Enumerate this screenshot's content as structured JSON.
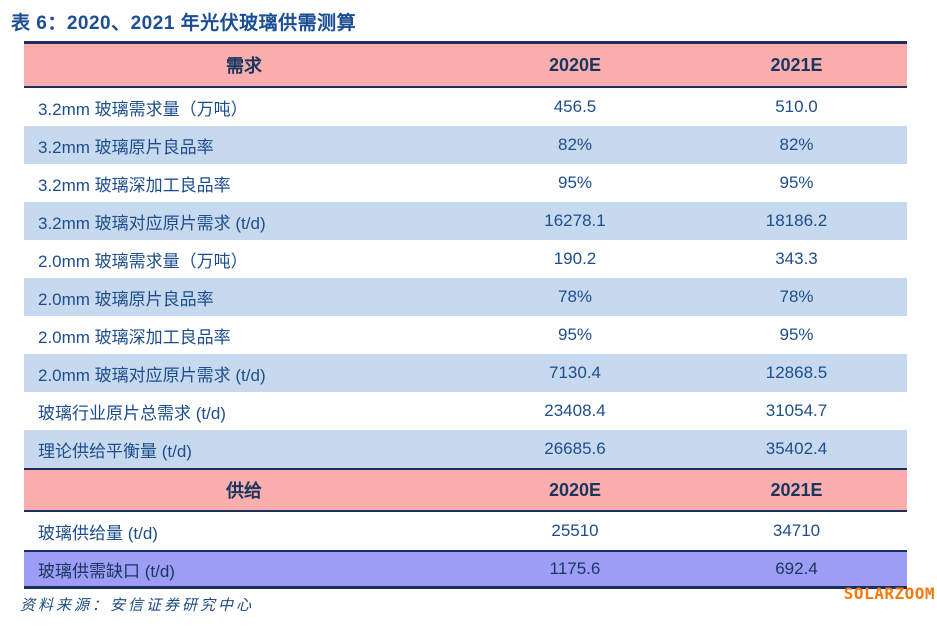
{
  "title": "表 6：2020、2021 年光伏玻璃供需测算",
  "source": "资料来源：安信证券研究中心",
  "watermark": "SOLARZOOM",
  "colors": {
    "title_blue": "#1B4E94",
    "header_pink": "#FCAEAE",
    "header_text_navy": "#17375E",
    "row_blue": "#C7D9EF",
    "gap_purple": "#9E9DF5",
    "border_navy": "#1B2F5E",
    "body_text_blue": "#1D4E8C",
    "watermark_orange": "#F8790B"
  },
  "table": {
    "demand_header": {
      "label": "需求",
      "col2020": "2020E",
      "col2021": "2021E"
    },
    "demand_rows": [
      {
        "label": "3.2mm 玻璃需求量（万吨）",
        "v2020": "456.5",
        "v2021": "510.0"
      },
      {
        "label": "3.2mm 玻璃原片良品率",
        "v2020": "82%",
        "v2021": "82%"
      },
      {
        "label": "3.2mm 玻璃深加工良品率",
        "v2020": "95%",
        "v2021": "95%"
      },
      {
        "label": "3.2mm 玻璃对应原片需求 (t/d)",
        "v2020": "16278.1",
        "v2021": "18186.2"
      },
      {
        "label": "2.0mm 玻璃需求量（万吨）",
        "v2020": "190.2",
        "v2021": "343.3"
      },
      {
        "label": "2.0mm 玻璃原片良品率",
        "v2020": "78%",
        "v2021": "78%"
      },
      {
        "label": "2.0mm 玻璃深加工良品率",
        "v2020": "95%",
        "v2021": "95%"
      },
      {
        "label": "2.0mm 玻璃对应原片需求 (t/d)",
        "v2020": "7130.4",
        "v2021": "12868.5"
      },
      {
        "label": "玻璃行业原片总需求 (t/d)",
        "v2020": "23408.4",
        "v2021": "31054.7"
      },
      {
        "label": "理论供给平衡量 (t/d)",
        "v2020": "26685.6",
        "v2021": "35402.4"
      }
    ],
    "supply_header": {
      "label": "供给",
      "col2020": "2020E",
      "col2021": "2021E"
    },
    "supply_row": {
      "label": "玻璃供给量 (t/d)",
      "v2020": "25510",
      "v2021": "34710"
    },
    "gap_row": {
      "label": "玻璃供需缺口 (t/d)",
      "v2020": "1175.6",
      "v2021": "692.4"
    }
  },
  "chart_data": {
    "type": "table",
    "title": "表 6：2020、2021 年光伏玻璃供需测算",
    "columns": [
      "2020E",
      "2021E"
    ],
    "sections": [
      {
        "header": "需求",
        "rows": [
          {
            "item": "3.2mm 玻璃需求量（万吨）",
            "2020E": 456.5,
            "2021E": 510.0
          },
          {
            "item": "3.2mm 玻璃原片良品率",
            "2020E": "82%",
            "2021E": "82%"
          },
          {
            "item": "3.2mm 玻璃深加工良品率",
            "2020E": "95%",
            "2021E": "95%"
          },
          {
            "item": "3.2mm 玻璃对应原片需求 (t/d)",
            "2020E": 16278.1,
            "2021E": 18186.2
          },
          {
            "item": "2.0mm 玻璃需求量（万吨）",
            "2020E": 190.2,
            "2021E": 343.3
          },
          {
            "item": "2.0mm 玻璃原片良品率",
            "2020E": "78%",
            "2021E": "78%"
          },
          {
            "item": "2.0mm 玻璃深加工良品率",
            "2020E": "95%",
            "2021E": "95%"
          },
          {
            "item": "2.0mm 玻璃对应原片需求 (t/d)",
            "2020E": 7130.4,
            "2021E": 12868.5
          },
          {
            "item": "玻璃行业原片总需求 (t/d)",
            "2020E": 23408.4,
            "2021E": 31054.7
          },
          {
            "item": "理论供给平衡量 (t/d)",
            "2020E": 26685.6,
            "2021E": 35402.4
          }
        ]
      },
      {
        "header": "供给",
        "rows": [
          {
            "item": "玻璃供给量 (t/d)",
            "2020E": 25510,
            "2021E": 34710
          },
          {
            "item": "玻璃供需缺口 (t/d)",
            "2020E": 1175.6,
            "2021E": 692.4
          }
        ]
      }
    ],
    "source": "资料来源：安信证券研究中心"
  }
}
